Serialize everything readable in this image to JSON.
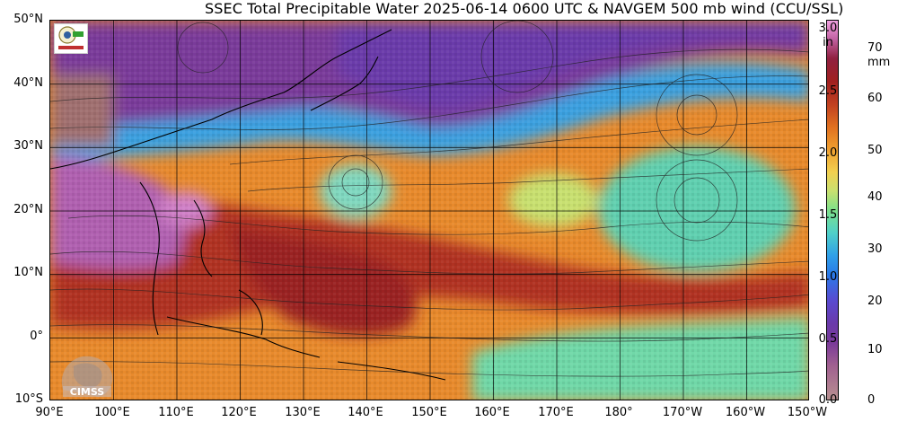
{
  "title": "SSEC Total Precipitable Water  2025-06-14 0600 UTC & NAVGEM 500 mb wind (CCU/SSL)",
  "lat_labels": [
    "50°N",
    "40°N",
    "30°N",
    "20°N",
    "10°N",
    "0°",
    "10°S"
  ],
  "lon_labels": [
    "90°E",
    "100°E",
    "110°E",
    "120°E",
    "130°E",
    "140°E",
    "150°E",
    "160°E",
    "170°E",
    "180°",
    "170°W",
    "160°W",
    "150°W"
  ],
  "colorbar": {
    "in_unit": "in",
    "mm_unit": "mm",
    "in_labels": [
      "3.0",
      "2.5",
      "2.0",
      "1.5",
      "1.0",
      "0.5",
      "0.0"
    ],
    "mm_labels": [
      "70",
      "60",
      "50",
      "40",
      "30",
      "20",
      "10",
      "0"
    ]
  },
  "logos": {
    "agency_logo_icon": "cwa-seal-icon",
    "watermark": "CIMSS"
  },
  "colors": {
    "dry": "#7a3a9a",
    "moderate": "#30a0e8",
    "moist": "#f0a030",
    "very_moist": "#a02020"
  }
}
